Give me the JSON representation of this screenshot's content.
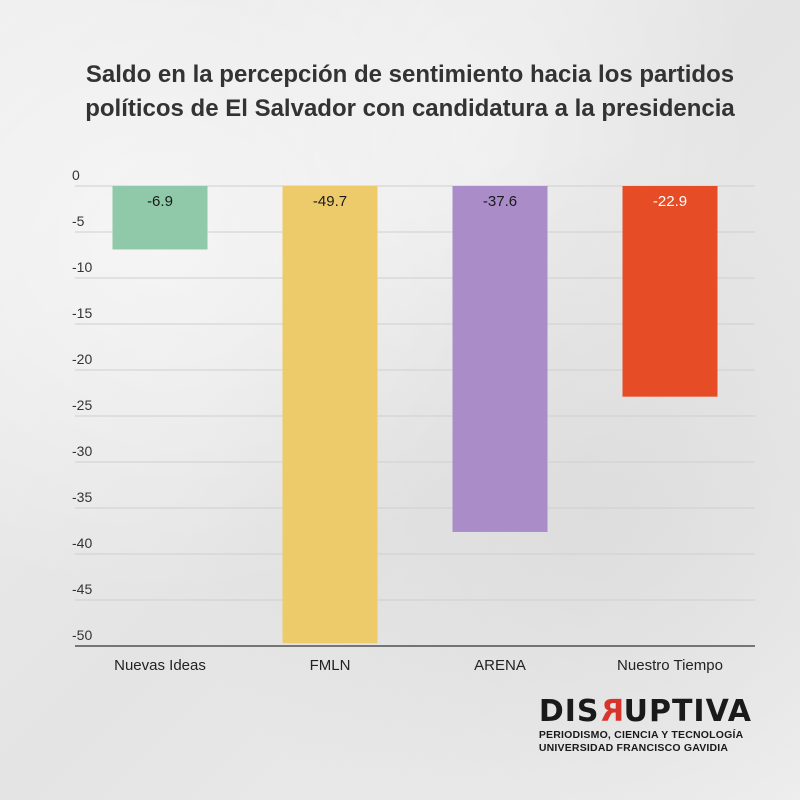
{
  "chart_data": {
    "type": "bar",
    "title": "Saldo en la percepción de sentimiento hacia los partidos políticos de El Salvador con candidatura a la presidencia",
    "categories": [
      "Nuevas Ideas",
      "FMLN",
      "ARENA",
      "Nuestro Tiempo"
    ],
    "values": [
      -6.9,
      -49.7,
      -37.6,
      -22.9
    ],
    "data_labels": [
      "-6.9",
      "-49.7",
      "-37.6",
      "-22.9"
    ],
    "colors": [
      "#8fc9a9",
      "#eecb6a",
      "#a98cc8",
      "#e64c26"
    ],
    "label_colors": [
      "#1a1a1a",
      "#1a1a1a",
      "#1a1a1a",
      "#ffffff"
    ],
    "ylim": [
      -50,
      0
    ],
    "yticks": [
      0,
      -5,
      -10,
      -15,
      -20,
      -25,
      -30,
      -35,
      -40,
      -45,
      -50
    ],
    "ytick_labels": [
      "0",
      "-5",
      "-10",
      "-15",
      "-20",
      "-25",
      "-30",
      "-35",
      "-40",
      "-45",
      "-50"
    ],
    "grid": true,
    "legend": "none"
  },
  "logo": {
    "word_left": "DIS",
    "word_accent": "R",
    "word_right": "UPTIVA",
    "line1": "PERIODISMO, CIENCIA Y TECNOLOGÍA",
    "line2": "UNIVERSIDAD FRANCISCO GAVIDIA"
  }
}
